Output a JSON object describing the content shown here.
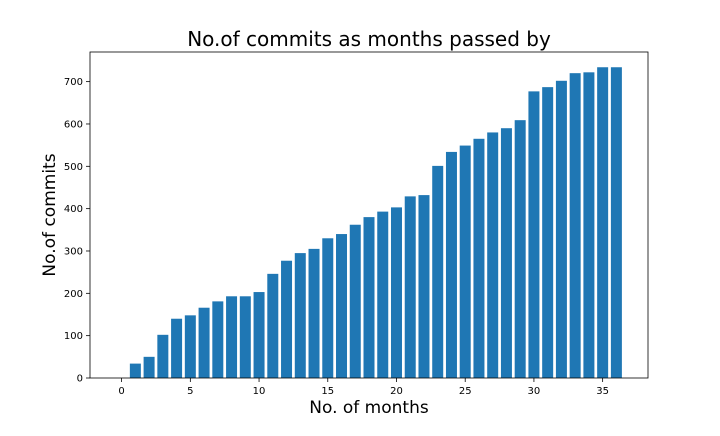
{
  "chart_data": {
    "type": "bar",
    "title": "No.of commits as months passed by",
    "xlabel": "No. of months",
    "ylabel": "No.of commits",
    "x": [
      1,
      2,
      3,
      4,
      5,
      6,
      7,
      8,
      9,
      10,
      11,
      12,
      13,
      14,
      15,
      16,
      17,
      18,
      19,
      20,
      21,
      22,
      23,
      24,
      25,
      26,
      27,
      28,
      29,
      30,
      31,
      32,
      33,
      34,
      35,
      36
    ],
    "values": [
      34,
      50,
      102,
      140,
      148,
      166,
      181,
      193,
      193,
      203,
      246,
      277,
      295,
      305,
      330,
      340,
      362,
      380,
      393,
      403,
      429,
      432,
      501,
      534,
      549,
      565,
      580,
      590,
      609,
      677,
      687,
      702,
      720,
      722,
      734,
      734
    ],
    "xlim": [
      -2.3,
      38.3
    ],
    "ylim": [
      0,
      770
    ],
    "xticks": [
      0,
      5,
      10,
      15,
      20,
      25,
      30,
      35
    ],
    "yticks": [
      0,
      100,
      200,
      300,
      400,
      500,
      600,
      700
    ],
    "grid": false,
    "bar_color": "#1f77b4"
  }
}
